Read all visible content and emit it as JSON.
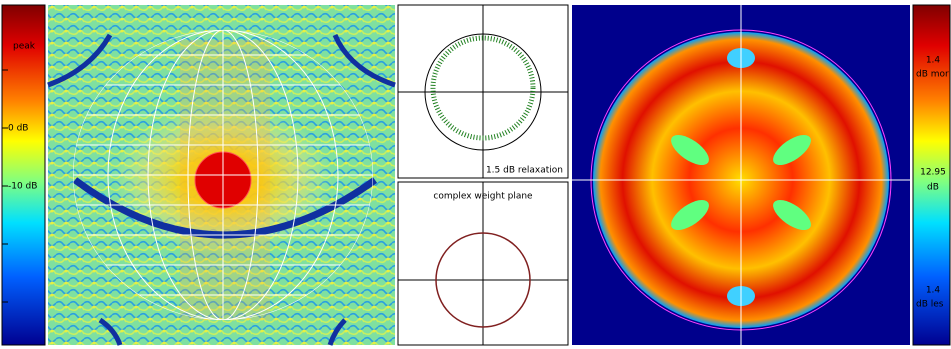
{
  "left_scale": {
    "labels": [
      "peak",
      "0 dB",
      "-10 dB"
    ]
  },
  "relaxation_panel": {
    "label": "1.5 dB relaxation"
  },
  "weight_panel": {
    "title": "complex weight plane"
  },
  "right_scale": {
    "labels": [
      "1.4",
      "dB mor",
      "12.95",
      "dB",
      "1.4",
      "dB les"
    ]
  }
}
